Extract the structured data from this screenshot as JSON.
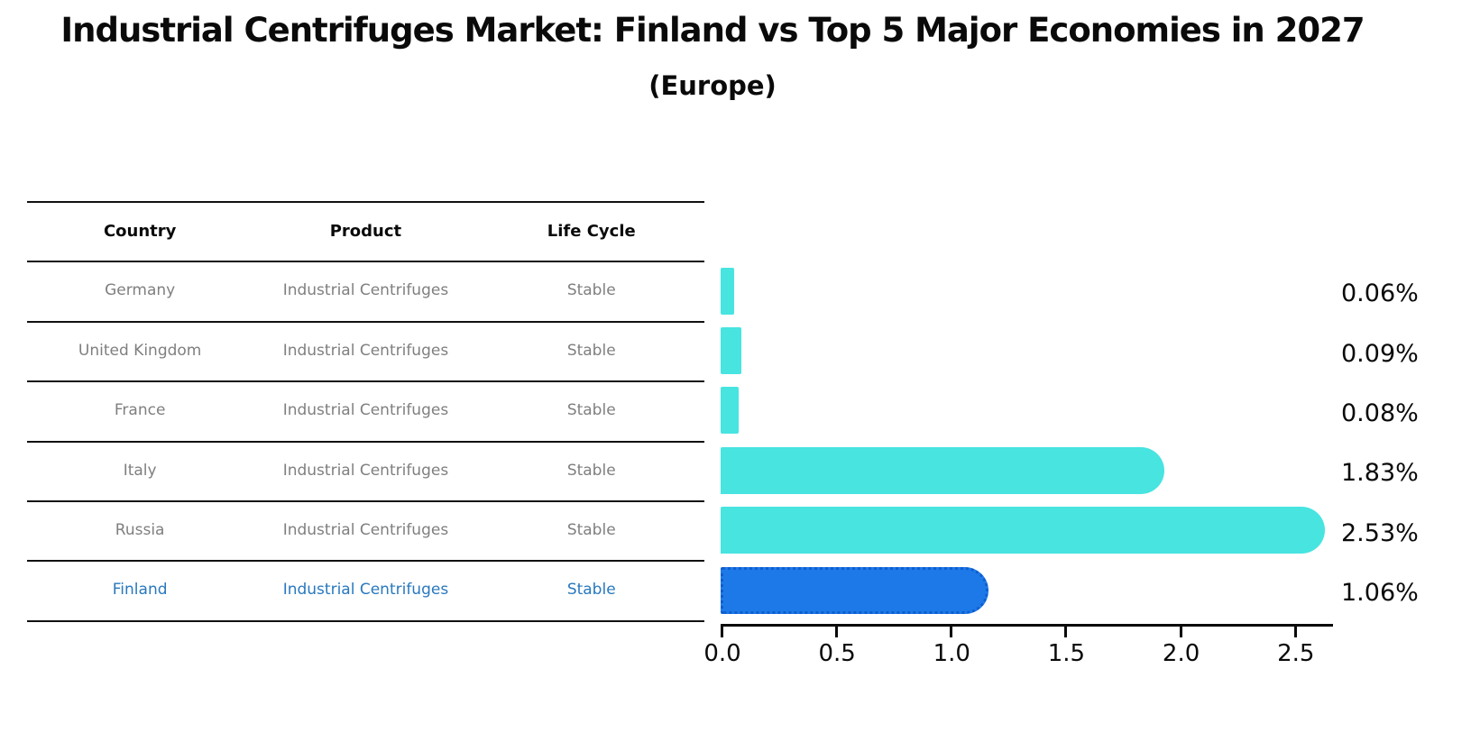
{
  "title": "Industrial Centrifuges Market: Finland vs Top 5 Major Economies in 2027",
  "subtitle": "(Europe)",
  "table": {
    "headers": [
      "Country",
      "Product",
      "Life Cycle"
    ],
    "rows": [
      {
        "country": "Germany",
        "product": "Industrial Centrifuges",
        "life_cycle": "Stable",
        "highlight": false
      },
      {
        "country": "United Kingdom",
        "product": "Industrial Centrifuges",
        "life_cycle": "Stable",
        "highlight": false
      },
      {
        "country": "France",
        "product": "Industrial Centrifuges",
        "life_cycle": "Stable",
        "highlight": false
      },
      {
        "country": "Italy",
        "product": "Industrial Centrifuges",
        "life_cycle": "Stable",
        "highlight": false
      },
      {
        "country": "Russia",
        "product": "Industrial Centrifuges",
        "life_cycle": "Stable",
        "highlight": false
      },
      {
        "country": "Finland",
        "product": "Industrial Centrifuges",
        "life_cycle": "Stable",
        "highlight": true
      }
    ]
  },
  "chart_data": {
    "type": "bar",
    "orientation": "horizontal",
    "categories": [
      "Germany",
      "United Kingdom",
      "France",
      "Italy",
      "Russia",
      "Finland"
    ],
    "values": [
      0.06,
      0.09,
      0.08,
      1.83,
      2.53,
      1.06
    ],
    "value_labels": [
      "0.06%",
      "0.09%",
      "0.08%",
      "1.83%",
      "2.53%",
      "1.06%"
    ],
    "highlight_index": 5,
    "title": "Industrial Centrifuges Market: Finland vs Top 5 Major Economies in 2027 (Europe)",
    "xlabel": "",
    "ylabel": "",
    "x_ticks": [
      "0.0",
      "0.5",
      "1.0",
      "1.5",
      "2.0",
      "2.5"
    ],
    "xlim": [
      0,
      2.67
    ],
    "grid": false,
    "legend": false,
    "colors": {
      "bar_default": "#47e4e0",
      "bar_highlight": "#1e79e8",
      "bar_highlight_edge": "#0d5ed0",
      "highlight_text": "#2878be",
      "row_text": "#7f7f7f",
      "axis": "#0a0a0a"
    }
  }
}
